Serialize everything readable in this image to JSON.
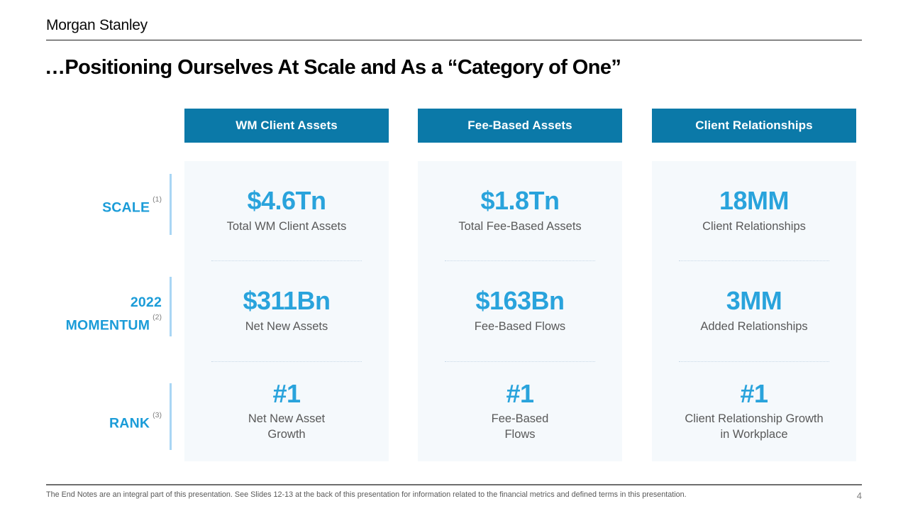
{
  "header": {
    "logo": "Morgan Stanley",
    "title": "…Positioning Ourselves At Scale and As a “Category of One”"
  },
  "columns": [
    {
      "header": "WM Client Assets",
      "cells": [
        {
          "value": "$4.6Tn",
          "label": [
            "Total WM Client Assets"
          ]
        },
        {
          "value": "$311Bn",
          "label": [
            "Net New Assets"
          ]
        },
        {
          "value": "#1",
          "label": [
            "Net New Asset",
            "Growth"
          ]
        }
      ]
    },
    {
      "header": "Fee-Based Assets",
      "cells": [
        {
          "value": "$1.8Tn",
          "label": [
            "Total Fee-Based Assets"
          ]
        },
        {
          "value": "$163Bn",
          "label": [
            "Fee-Based Flows"
          ]
        },
        {
          "value": "#1",
          "label": [
            "Fee-Based",
            "Flows"
          ]
        }
      ]
    },
    {
      "header": "Client Relationships",
      "cells": [
        {
          "value": "18MM",
          "label": [
            "Client Relationships"
          ]
        },
        {
          "value": "3MM",
          "label": [
            "Added Relationships"
          ]
        },
        {
          "value": "#1",
          "label": [
            "Client Relationship Growth",
            "in Workplace"
          ]
        }
      ]
    }
  ],
  "row_labels": [
    {
      "line1": "",
      "label": "SCALE",
      "ref": "(1)"
    },
    {
      "line1": "2022",
      "label": "MOMENTUM",
      "ref": "(2)"
    },
    {
      "line1": "",
      "label": "RANK",
      "ref": "(3)"
    }
  ],
  "footer": {
    "note": "The End Notes are an integral part of this presentation. See Slides 12-13 at the back of this presentation for information related to the financial metrics and defined terms in this presentation.",
    "page_number": "4"
  },
  "colors": {
    "header_teal": "#0b79a8",
    "accent_blue": "#29a3dc",
    "row_label_blue": "#1b9cd8",
    "panel_bg": "#f5f9fc",
    "label_bar_blue": "#a9d6f4",
    "body_gray": "#595959"
  }
}
